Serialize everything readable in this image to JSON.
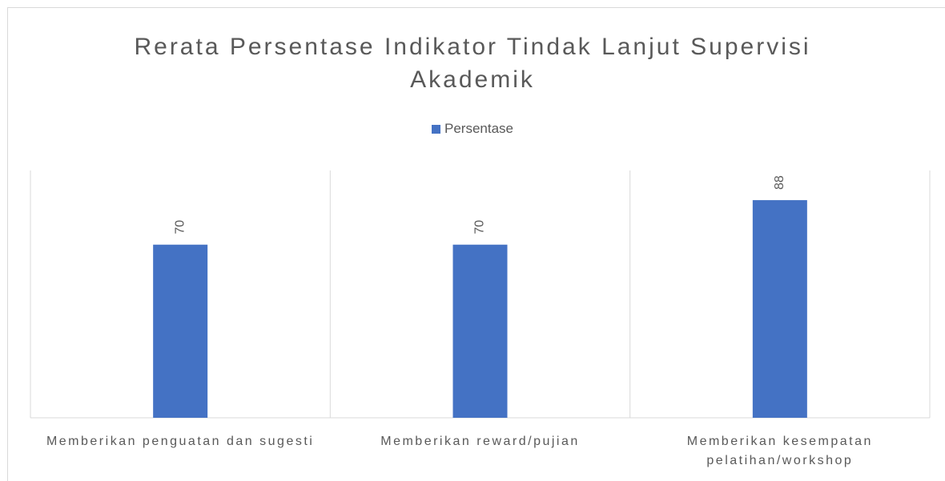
{
  "chart_data": {
    "type": "bar",
    "title": "Rerata Persentase Indikator Tindak Lanjut Supervisi Akademik",
    "categories": [
      "Memberikan penguatan dan sugesti",
      "Memberikan reward/pujian",
      "Memberikan kesempatan pelatihan/workshop"
    ],
    "series": [
      {
        "name": "Persentase",
        "color": "#4472c4",
        "values": [
          70,
          70,
          88
        ]
      }
    ],
    "ylim": [
      0,
      100
    ],
    "legend": "top"
  }
}
